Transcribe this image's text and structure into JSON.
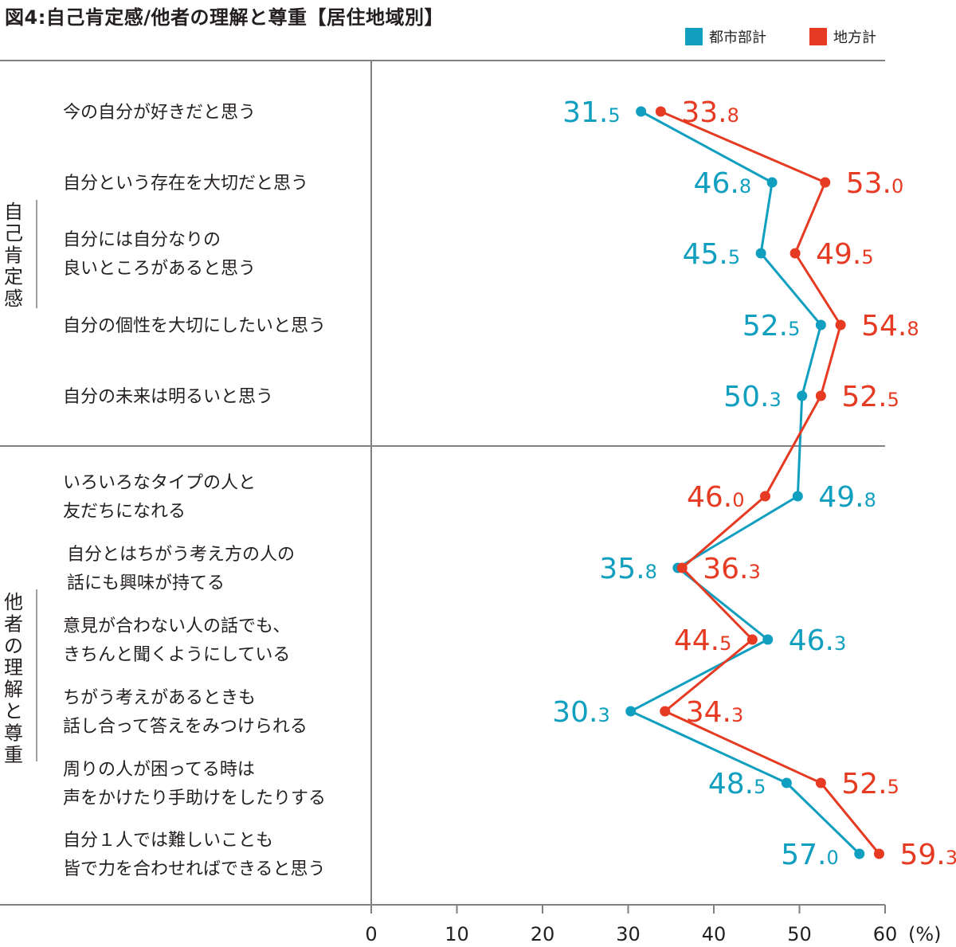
{
  "title": "図4:自己肯定感/他者の理解と尊重【居住地域別】",
  "colors": {
    "urban": "#109fbf",
    "rural": "#e63a22",
    "axis": "#808080",
    "text": "#231f20"
  },
  "legend": [
    {
      "name": "都市部計",
      "color": "#109fbf"
    },
    {
      "name": "地方計",
      "color": "#e63a22"
    }
  ],
  "groups": [
    {
      "label": "自己肯定感",
      "items": [
        0,
        1,
        2,
        3,
        4
      ]
    },
    {
      "label": "他者の理解と尊重",
      "items": [
        5,
        6,
        7,
        8,
        9,
        10
      ]
    }
  ],
  "chart_data": {
    "type": "line",
    "orientation": "horizontal",
    "categories": [
      [
        "今の自分が好きだと思う"
      ],
      [
        "自分という存在を大切だと思う"
      ],
      [
        "自分には自分なりの",
        "良いところがあると思う"
      ],
      [
        "自分の個性を大切にしたいと思う"
      ],
      [
        "自分の未来は明るいと思う"
      ],
      [
        "いろいろなタイプの人と",
        "友だちになれる"
      ],
      [
        "自分とはちがう考え方の人の",
        "話にも興味が持てる"
      ],
      [
        "意見が合わない人の話でも、",
        "きちんと聞くようにしている"
      ],
      [
        "ちがう考えがあるときも",
        "話し合って答えをみつけられる"
      ],
      [
        "周りの人が困ってる時は",
        "声をかけたり手助けをしたりする"
      ],
      [
        "自分１人では難しいことも",
        "皆で力を合わせればできると思う"
      ]
    ],
    "series": [
      {
        "name": "都市部計",
        "color": "#109fbf",
        "values": [
          31.5,
          46.8,
          45.5,
          52.5,
          50.3,
          49.8,
          35.8,
          46.3,
          30.3,
          48.5,
          57.0
        ]
      },
      {
        "name": "地方計",
        "color": "#e63a22",
        "values": [
          33.8,
          53.0,
          49.5,
          54.8,
          52.5,
          46.0,
          36.3,
          44.5,
          34.3,
          52.5,
          59.3
        ]
      }
    ],
    "xlim": [
      0,
      60
    ],
    "xticks": [
      "0",
      "10",
      "20",
      "30",
      "40",
      "50",
      "60"
    ],
    "xunit": "(%)",
    "grid": false,
    "legend_position": "top-right"
  }
}
